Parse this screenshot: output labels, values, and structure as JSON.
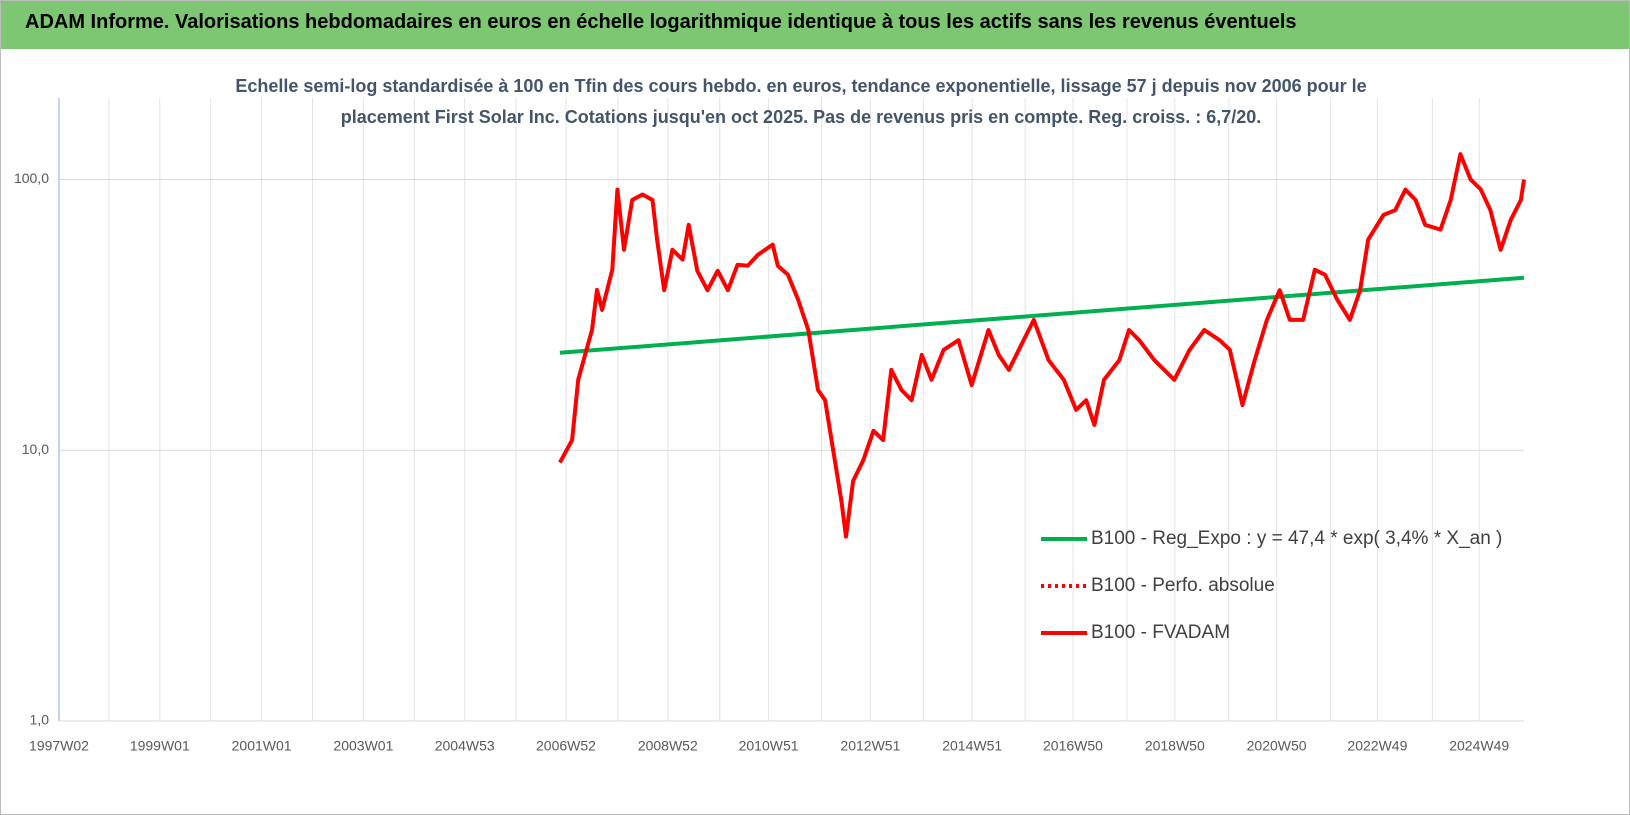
{
  "header": {
    "title": "ADAM Informe. Valorisations hebdomadaires en euros en échelle logarithmique identique à tous les actifs sans les revenus éventuels"
  },
  "chart_data": {
    "type": "line",
    "title": "Echelle semi-log standardisée à 100 en Tfin des cours hebdo. en euros, tendance exponentielle, lissage 57 j depuis nov 2006 pour le placement First Solar Inc. Cotations jusqu'en oct 2025. Pas de revenus pris en compte. Reg. croiss. : 6,7/20.",
    "log_scale": true,
    "grid": true,
    "xlim": [
      1997.02,
      2025.8
    ],
    "xticks": [
      {
        "value": 1997.02,
        "label": "1997W02"
      },
      {
        "value": 1999.0,
        "label": "1999W01"
      },
      {
        "value": 2001.0,
        "label": "2001W01"
      },
      {
        "value": 2003.0,
        "label": "2003W01"
      },
      {
        "value": 2004.99,
        "label": "2004W53"
      },
      {
        "value": 2006.98,
        "label": "2006W52"
      },
      {
        "value": 2008.98,
        "label": "2008W52"
      },
      {
        "value": 2010.96,
        "label": "2010W51"
      },
      {
        "value": 2012.96,
        "label": "2012W51"
      },
      {
        "value": 2014.96,
        "label": "2014W51"
      },
      {
        "value": 2016.94,
        "label": "2016W50"
      },
      {
        "value": 2018.94,
        "label": "2018W50"
      },
      {
        "value": 2020.94,
        "label": "2020W50"
      },
      {
        "value": 2022.92,
        "label": "2022W49"
      },
      {
        "value": 2024.92,
        "label": "2024W49"
      }
    ],
    "xminor": [
      1998,
      2000,
      2002,
      2004,
      2006,
      2008,
      2010,
      2012,
      2014,
      2016,
      2018,
      2020,
      2022,
      2024
    ],
    "ylim": [
      1,
      200
    ],
    "yticks": [
      {
        "value": 1,
        "label": "1,0"
      },
      {
        "value": 10,
        "label": "10,0"
      },
      {
        "value": 100,
        "label": "100,0"
      }
    ],
    "legend": "right",
    "series": [
      {
        "name": "B100 - Reg_Expo : y = 47,4 * exp( 3,4% *  X_an )",
        "color": "#00b050",
        "style": "solid",
        "x": [
          2006.86,
          2025.8
        ],
        "values": [
          22.9,
          43.4
        ]
      },
      {
        "name": "B100 - Perfo. absolue",
        "color": "#ff0000",
        "style": "dotted",
        "x": [],
        "values": []
      },
      {
        "name": "B100 - FVADAM",
        "color": "#ff0000",
        "style": "solid",
        "x": [
          2006.86,
          2007.1,
          2007.22,
          2007.49,
          2007.59,
          2007.69,
          2007.89,
          2007.99,
          2008.12,
          2008.28,
          2008.48,
          2008.68,
          2008.77,
          2008.91,
          2009.07,
          2009.27,
          2009.39,
          2009.56,
          2009.76,
          2009.96,
          2010.16,
          2010.35,
          2010.55,
          2010.75,
          2011.04,
          2011.14,
          2011.34,
          2011.54,
          2011.74,
          2011.93,
          2012.07,
          2012.23,
          2012.39,
          2012.48,
          2012.62,
          2012.82,
          2013.02,
          2013.21,
          2013.37,
          2013.57,
          2013.77,
          2013.97,
          2014.16,
          2014.4,
          2014.69,
          2014.95,
          2015.28,
          2015.48,
          2015.68,
          2015.97,
          2016.17,
          2016.46,
          2016.76,
          2017.0,
          2017.2,
          2017.36,
          2017.55,
          2017.85,
          2018.04,
          2018.24,
          2018.54,
          2018.93,
          2019.23,
          2019.52,
          2019.82,
          2020.02,
          2020.27,
          2020.51,
          2020.75,
          2021.0,
          2021.2,
          2021.46,
          2021.69,
          2021.89,
          2022.13,
          2022.38,
          2022.58,
          2022.74,
          2023.04,
          2023.27,
          2023.47,
          2023.67,
          2023.86,
          2024.16,
          2024.36,
          2024.55,
          2024.75,
          2024.95,
          2025.14,
          2025.34,
          2025.54,
          2025.74,
          2025.8
        ],
        "values": [
          9.0,
          10.9,
          18.2,
          27.8,
          39.1,
          33,
          46.4,
          91.8,
          55,
          84,
          88,
          84,
          60,
          39,
          55,
          50.6,
          68,
          46,
          39,
          46,
          39,
          48.4,
          48,
          52.7,
          57.5,
          48,
          44.5,
          36,
          27.8,
          16.7,
          15.3,
          10,
          6.5,
          4.8,
          7.7,
          9.2,
          11.8,
          10.9,
          19.8,
          16.7,
          15.3,
          22.5,
          18.2,
          23.5,
          25.5,
          17.4,
          27.8,
          22.5,
          19.8,
          25.5,
          30.3,
          21.5,
          18.2,
          14.1,
          15.3,
          12.4,
          18.2,
          21.5,
          27.8,
          25.5,
          21.5,
          18.2,
          23.5,
          27.8,
          25.5,
          23.5,
          14.7,
          21.5,
          30.3,
          39,
          30.3,
          30.3,
          46.4,
          44.5,
          36,
          30.3,
          39,
          60,
          74,
          77,
          91.8,
          84,
          68,
          65.3,
          84,
          124,
          100,
          92,
          77,
          55,
          71,
          84,
          100
        ]
      }
    ]
  }
}
